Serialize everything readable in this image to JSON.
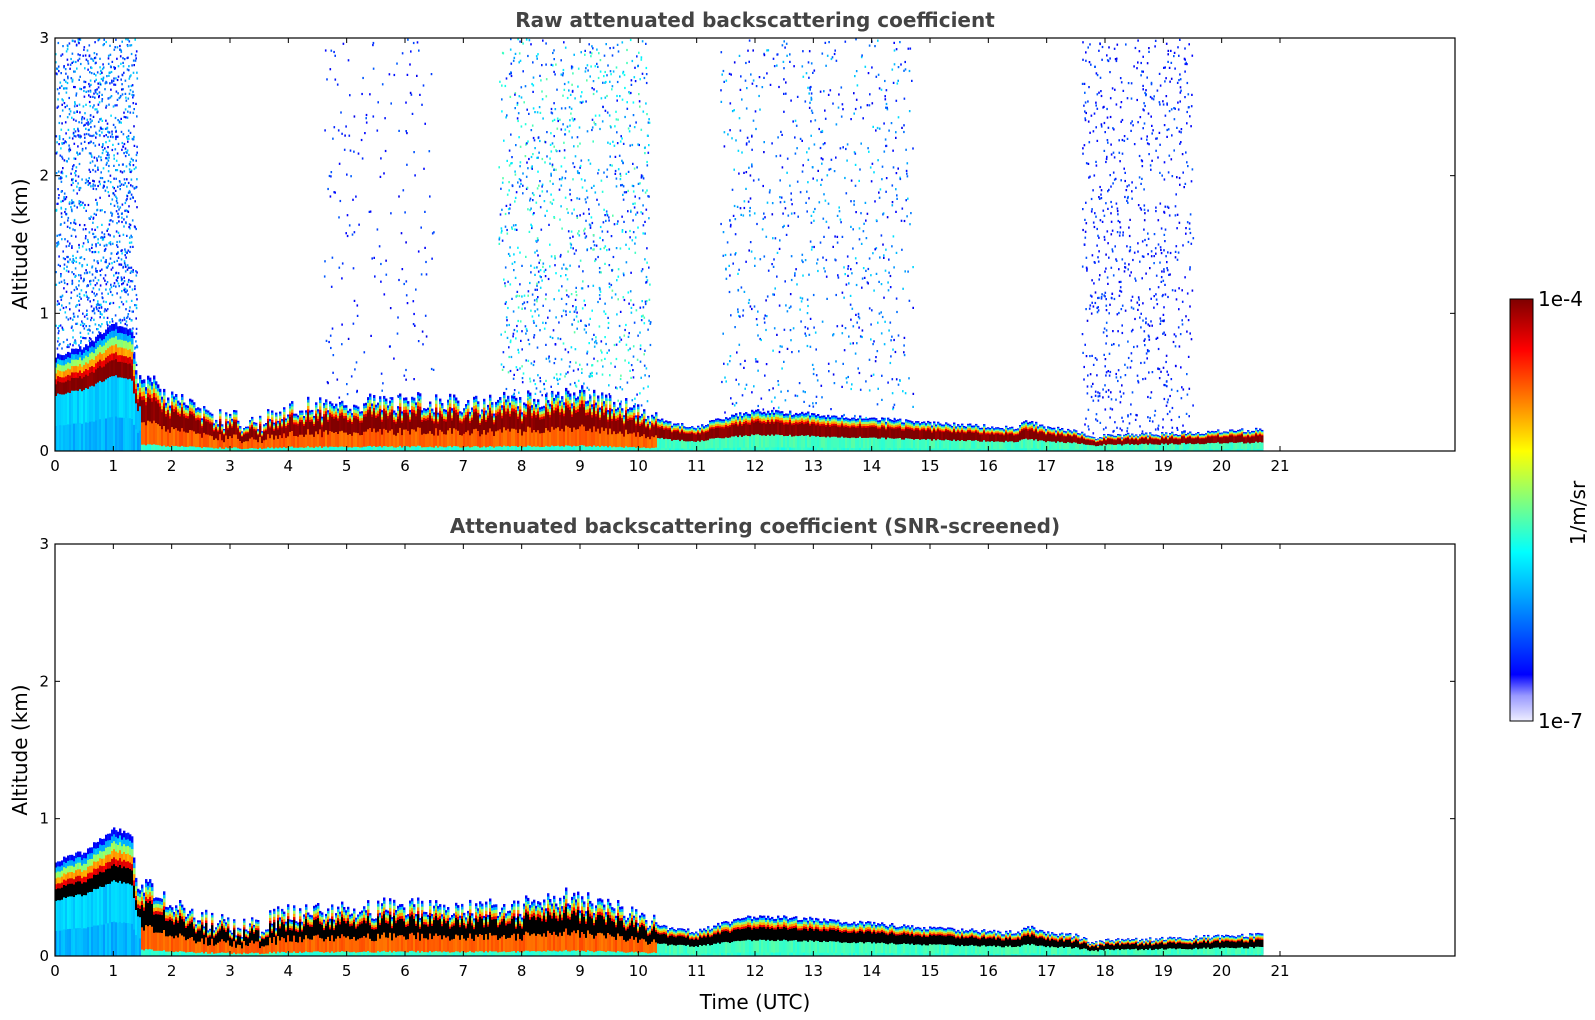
{
  "chart_data": [
    {
      "type": "heatmap",
      "title": "Raw attenuated backscattering coefficient",
      "xlabel": "",
      "ylabel": "Altitude (km)",
      "xlim": [
        0,
        24
      ],
      "ylim": [
        0,
        3
      ],
      "xticks": [
        0,
        1,
        2,
        3,
        4,
        5,
        6,
        7,
        8,
        9,
        10,
        11,
        12,
        13,
        14,
        15,
        16,
        17,
        18,
        19,
        20,
        21
      ],
      "yticks": [
        0,
        1,
        2,
        3
      ],
      "data_end_hour": 20.7,
      "screened": false,
      "noise_regions": [
        {
          "start": 0.0,
          "end": 1.4,
          "density": 0.55,
          "color": "blue-cyan"
        },
        {
          "start": 4.6,
          "end": 6.5,
          "density": 0.06,
          "color": "blue"
        },
        {
          "start": 7.6,
          "end": 10.2,
          "density": 0.25,
          "color": "blue-cyan-green"
        },
        {
          "start": 11.4,
          "end": 14.7,
          "density": 0.14,
          "color": "blue-cyan"
        },
        {
          "start": 17.6,
          "end": 19.5,
          "density": 0.25,
          "color": "blue"
        }
      ]
    },
    {
      "type": "heatmap",
      "title": "Attenuated backscattering coefficient (SNR-screened)",
      "xlabel": "Time (UTC)",
      "ylabel": "Altitude (km)",
      "xlim": [
        0,
        24
      ],
      "ylim": [
        0,
        3
      ],
      "xticks": [
        0,
        1,
        2,
        3,
        4,
        5,
        6,
        7,
        8,
        9,
        10,
        11,
        12,
        13,
        14,
        15,
        16,
        17,
        18,
        19,
        20,
        21
      ],
      "yticks": [
        0,
        1,
        2,
        3
      ],
      "data_end_hour": 20.7,
      "screened": true
    }
  ],
  "boundary_layer_height_km": {
    "hours": [
      0,
      0.5,
      1.0,
      1.3,
      1.4,
      1.6,
      2.0,
      2.5,
      3.0,
      3.5,
      3.7,
      4.0,
      5.0,
      6.0,
      7.0,
      8.0,
      8.8,
      9.5,
      10.0,
      10.5,
      11.0,
      11.5,
      12.0,
      12.5,
      13.0,
      14.0,
      15.0,
      16.0,
      16.5,
      16.6,
      17.0,
      17.5,
      17.8,
      18.0,
      19.0,
      20.0,
      20.7
    ],
    "values": [
      0.62,
      0.68,
      0.83,
      0.78,
      0.42,
      0.45,
      0.33,
      0.24,
      0.2,
      0.18,
      0.24,
      0.28,
      0.3,
      0.32,
      0.3,
      0.32,
      0.38,
      0.32,
      0.28,
      0.18,
      0.16,
      0.22,
      0.26,
      0.25,
      0.24,
      0.21,
      0.18,
      0.16,
      0.15,
      0.2,
      0.15,
      0.13,
      0.08,
      0.1,
      0.11,
      0.13,
      0.14
    ]
  },
  "colorbar": {
    "label": "1/m/sr",
    "max_label": "1e-4",
    "min_label": "1e-7",
    "scale": "log",
    "colormap": "jet",
    "colors": [
      "#eeeeff",
      "#ccccff",
      "#0000ff",
      "#00aaff",
      "#00ffff",
      "#7fff7f",
      "#ffff00",
      "#ff7f00",
      "#ff0000",
      "#7f0000"
    ]
  }
}
